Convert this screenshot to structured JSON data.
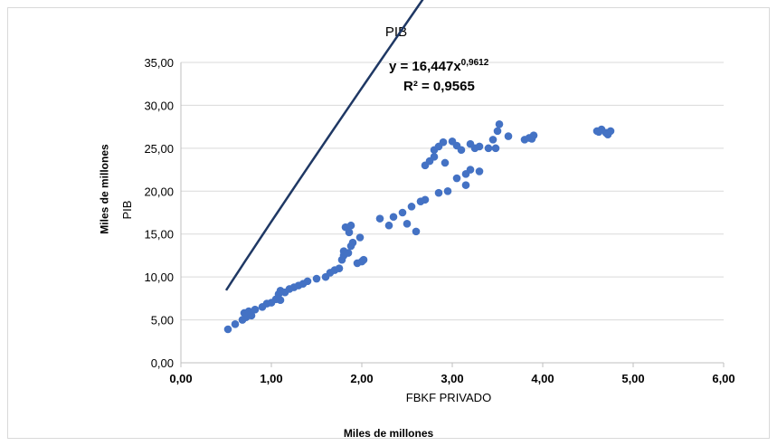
{
  "outer_labels": {
    "y": "Miles de millones",
    "x": "Miles de millones"
  },
  "chart_data": {
    "type": "scatter",
    "title": "PIB",
    "xlabel": "FBKF PRIVADO",
    "ylabel": "PIB",
    "xlim": [
      0,
      6
    ],
    "ylim": [
      0,
      35
    ],
    "x_ticks": [
      "0,00",
      "1,00",
      "2,00",
      "3,00",
      "4,00",
      "5,00",
      "6,00"
    ],
    "y_ticks": [
      "0,00",
      "5,00",
      "10,00",
      "15,00",
      "20,00",
      "25,00",
      "30,00",
      "35,00"
    ],
    "grid": "horizontal",
    "colors": {
      "points": "#4472c4",
      "trendline": "#1f3864"
    },
    "equation": {
      "prefix": "y = 16,447x",
      "exponent": "0,9612"
    },
    "r_squared": "R² = 0,9565",
    "trendline": {
      "type": "power",
      "a": 16.447,
      "b": 0.9612,
      "x_range": [
        0.5,
        4.75
      ]
    },
    "series": [
      {
        "points": [
          [
            0.52,
            3.9
          ],
          [
            0.6,
            4.5
          ],
          [
            0.68,
            5.0
          ],
          [
            0.72,
            5.3
          ],
          [
            0.7,
            5.8
          ],
          [
            0.75,
            6.0
          ],
          [
            0.78,
            5.5
          ],
          [
            0.82,
            6.2
          ],
          [
            0.9,
            6.5
          ],
          [
            0.95,
            6.9
          ],
          [
            1.0,
            7.0
          ],
          [
            1.05,
            7.4
          ],
          [
            1.1,
            7.3
          ],
          [
            1.08,
            8.0
          ],
          [
            1.1,
            8.4
          ],
          [
            1.15,
            8.2
          ],
          [
            1.2,
            8.6
          ],
          [
            1.25,
            8.8
          ],
          [
            1.3,
            9.0
          ],
          [
            1.35,
            9.2
          ],
          [
            1.4,
            9.5
          ],
          [
            1.5,
            9.8
          ],
          [
            1.6,
            10.0
          ],
          [
            1.65,
            10.5
          ],
          [
            1.7,
            10.8
          ],
          [
            1.75,
            11.0
          ],
          [
            1.78,
            12.0
          ],
          [
            1.8,
            12.5
          ],
          [
            1.8,
            13.0
          ],
          [
            1.85,
            12.8
          ],
          [
            1.88,
            13.6
          ],
          [
            1.9,
            14.0
          ],
          [
            1.95,
            11.6
          ],
          [
            2.0,
            11.8
          ],
          [
            2.02,
            12.0
          ],
          [
            1.98,
            14.6
          ],
          [
            1.82,
            15.8
          ],
          [
            1.88,
            16.0
          ],
          [
            1.86,
            15.2
          ],
          [
            2.2,
            16.8
          ],
          [
            2.3,
            16.0
          ],
          [
            2.35,
            17.0
          ],
          [
            2.45,
            17.5
          ],
          [
            2.5,
            16.2
          ],
          [
            2.55,
            18.2
          ],
          [
            2.6,
            15.3
          ],
          [
            2.65,
            18.8
          ],
          [
            2.7,
            19.0
          ],
          [
            2.85,
            19.8
          ],
          [
            2.95,
            20.0
          ],
          [
            3.05,
            21.5
          ],
          [
            3.15,
            20.7
          ],
          [
            3.15,
            22.0
          ],
          [
            3.2,
            22.5
          ],
          [
            3.3,
            22.3
          ],
          [
            2.7,
            23.0
          ],
          [
            2.75,
            23.5
          ],
          [
            2.8,
            24.0
          ],
          [
            2.8,
            24.8
          ],
          [
            2.85,
            25.2
          ],
          [
            2.9,
            25.7
          ],
          [
            2.92,
            23.3
          ],
          [
            3.0,
            25.8
          ],
          [
            3.05,
            25.3
          ],
          [
            3.1,
            24.8
          ],
          [
            3.2,
            25.5
          ],
          [
            3.25,
            25.0
          ],
          [
            3.3,
            25.2
          ],
          [
            3.4,
            25.0
          ],
          [
            3.45,
            26.0
          ],
          [
            3.5,
            27.0
          ],
          [
            3.52,
            27.8
          ],
          [
            3.48,
            25.0
          ],
          [
            3.62,
            26.4
          ],
          [
            3.8,
            26.0
          ],
          [
            3.85,
            26.2
          ],
          [
            3.88,
            26.1
          ],
          [
            3.9,
            26.5
          ],
          [
            4.6,
            27.0
          ],
          [
            4.65,
            27.2
          ],
          [
            4.7,
            26.8
          ],
          [
            4.75,
            27.0
          ],
          [
            4.72,
            26.6
          ],
          [
            4.62,
            26.9
          ]
        ]
      }
    ]
  }
}
